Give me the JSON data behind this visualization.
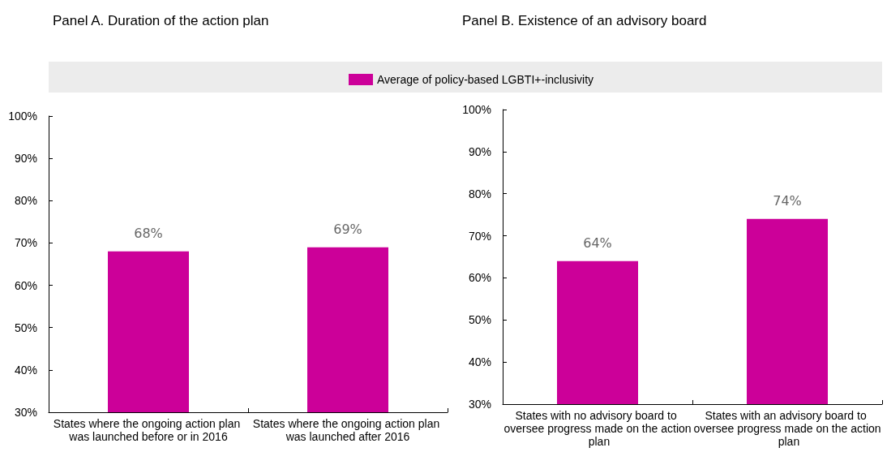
{
  "chart_data": [
    {
      "type": "bar",
      "title": "Panel A. Duration of the action plan",
      "categories": [
        "States where the ongoing action plan was launched before or in 2016",
        "States where the ongoing action plan was launched after 2016"
      ],
      "series": [
        {
          "name": "Average of policy-based LGBTI+-inclusivity",
          "color": "#cc0099",
          "values": [
            68,
            69
          ]
        }
      ],
      "ylim": [
        30,
        100
      ],
      "yticks": [
        {
          "value": 30,
          "label": "30%"
        },
        {
          "value": 40,
          "label": "40%"
        },
        {
          "value": 50,
          "label": "50%"
        },
        {
          "value": 60,
          "label": "60%"
        },
        {
          "value": 70,
          "label": "70%"
        },
        {
          "value": 80,
          "label": "80%"
        },
        {
          "value": 90,
          "label": "90%"
        },
        {
          "value": 100,
          "label": "100%"
        }
      ],
      "value_labels": [
        "68%",
        "69%"
      ],
      "grid": false,
      "legend": "top"
    },
    {
      "type": "bar",
      "title": "Panel B. Existence of an advisory board",
      "categories": [
        "States with no advisory board to oversee progress made on the action plan",
        "States with an advisory board to oversee progress made on the action plan"
      ],
      "series": [
        {
          "color": "#cc0099",
          "values": [
            64,
            74
          ]
        }
      ],
      "ylim": [
        30,
        100
      ],
      "yticks": [
        {
          "value": 30,
          "label": "30%"
        },
        {
          "value": 40,
          "label": "40%"
        },
        {
          "value": 50,
          "label": "50%"
        },
        {
          "value": 60,
          "label": "60%"
        },
        {
          "value": 70,
          "label": "70%"
        },
        {
          "value": 80,
          "label": "80%"
        },
        {
          "value": 90,
          "label": "90%"
        },
        {
          "value": 100,
          "label": "100%"
        }
      ],
      "value_labels": [
        "64%",
        "74%"
      ],
      "grid": false
    }
  ]
}
